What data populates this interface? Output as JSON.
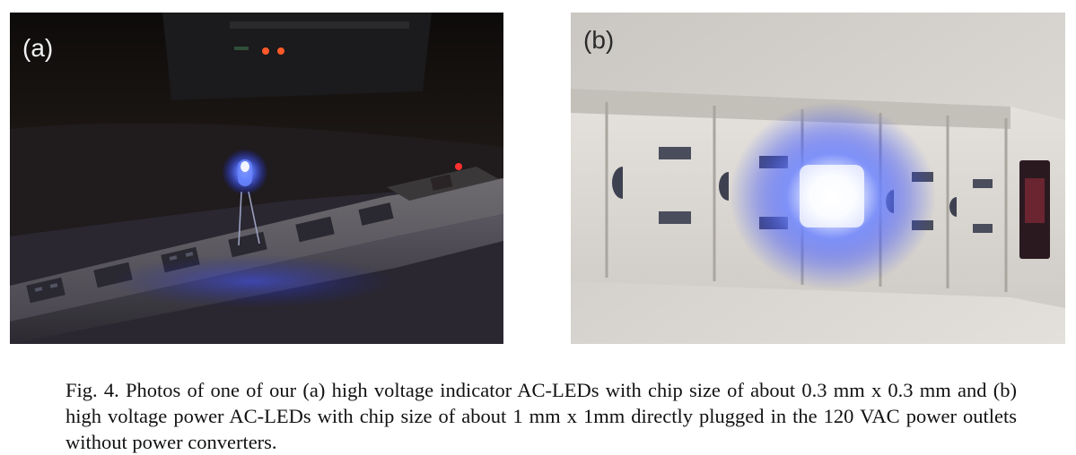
{
  "figure": {
    "panels": [
      {
        "label": "(a)",
        "subject": "indicator AC-LED plugged into power strip",
        "led_color": "#3a5bff",
        "background_color": "#14110f"
      },
      {
        "label": "(b)",
        "subject": "power AC-LED plugged into power strip",
        "led_color": "#2f46ff",
        "background_color": "#d9d6d1"
      }
    ],
    "caption": "Fig. 4. Photos of one of our (a) high voltage indicator AC-LEDs with chip size of about 0.3 mm x 0.3 mm and (b) high voltage power AC-LEDs with chip size of about 1 mm x 1mm directly plugged in the 120 VAC power outlets without power converters."
  }
}
